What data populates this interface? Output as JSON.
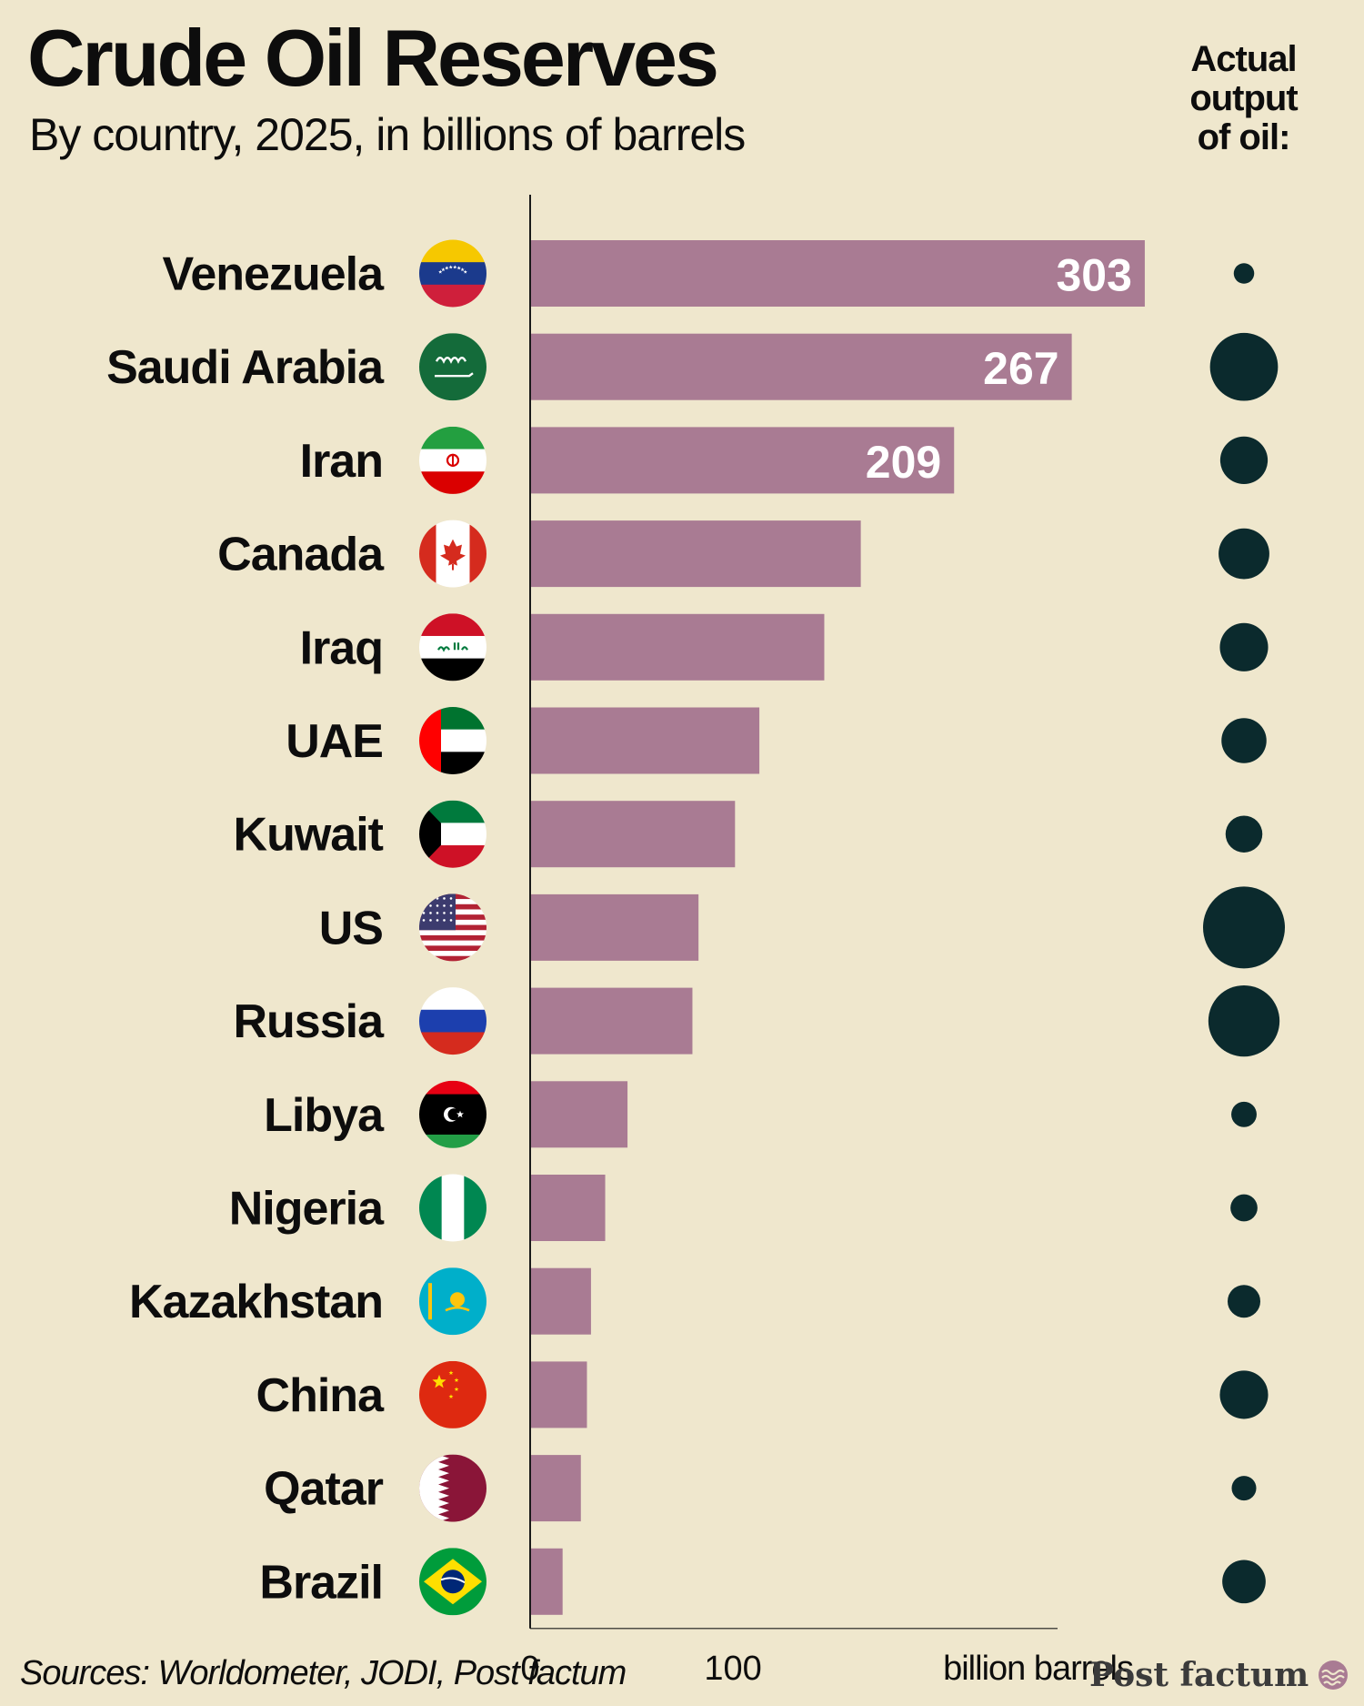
{
  "header": {
    "title": "Crude Oil Reserves",
    "subtitle": "By country, 2025, in billions of barrels",
    "output_heading": [
      "Actual",
      "output",
      "of oil:"
    ]
  },
  "footer": {
    "source": "Sources: Worldometer, JODI, Post factum",
    "brand": "Post factum"
  },
  "colors": {
    "background": "#efe7cd",
    "bar": "#a97b93",
    "dot": "#0b2a2d",
    "text": "#0d0d0d"
  },
  "chart_data": {
    "type": "bar",
    "orientation": "horizontal",
    "categories": [
      "Venezuela",
      "Saudi Arabia",
      "Iran",
      "Canada",
      "Iraq",
      "UAE",
      "Kuwait",
      "US",
      "Russia",
      "Libya",
      "Nigeria",
      "Kazakhstan",
      "China",
      "Qatar",
      "Brazil"
    ],
    "series": [
      {
        "values": [
          303,
          267,
          209,
          163,
          145,
          113,
          101,
          83,
          80,
          48,
          37,
          30,
          28,
          25,
          16
        ],
        "data_labels": [
          "303",
          "267",
          "209",
          "",
          "",
          "",
          "",
          "",
          "",
          "",
          "",
          "",
          "",
          "",
          ""
        ]
      }
    ],
    "actual_output_relative_size": [
      0.25,
      0.83,
      0.58,
      0.62,
      0.59,
      0.55,
      0.45,
      1.0,
      0.87,
      0.31,
      0.33,
      0.4,
      0.59,
      0.3,
      0.53
    ],
    "xlim": [
      0,
      260
    ],
    "xticks": [
      "0",
      "100"
    ],
    "xlabel": "billion barrels",
    "flags": [
      "venezuela-flag-icon",
      "saudi-arabia-flag-icon",
      "iran-flag-icon",
      "canada-flag-icon",
      "iraq-flag-icon",
      "uae-flag-icon",
      "kuwait-flag-icon",
      "us-flag-icon",
      "russia-flag-icon",
      "libya-flag-icon",
      "nigeria-flag-icon",
      "kazakhstan-flag-icon",
      "china-flag-icon",
      "qatar-flag-icon",
      "brazil-flag-icon"
    ]
  }
}
